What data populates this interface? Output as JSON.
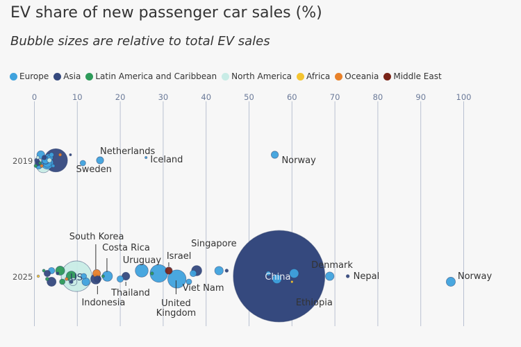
{
  "title": "EV share of new passenger car sales (%)",
  "subtitle": "Bubble sizes are relative to total EV sales",
  "colors": {
    "Europe": "#3fa2dd",
    "Asia": "#35497e",
    "Latin America and Caribbean": "#2e9b5a",
    "North America": "#c8ece6",
    "Africa": "#f4c430",
    "Oceania": "#e8812a",
    "Middle East": "#7a2418",
    "grid": "#b9c1d1",
    "label": "#333333"
  },
  "chart_data": {
    "type": "scatter",
    "x_ticks": [
      "0",
      "10",
      "20",
      "30",
      "40",
      "50",
      "60",
      "70",
      "80",
      "90",
      "100"
    ],
    "xlim": [
      0,
      100
    ],
    "categories": [
      "2019",
      "2025"
    ],
    "legend": [
      "Europe",
      "Asia",
      "Latin America and Caribbean",
      "North America",
      "Africa",
      "Oceania",
      "Middle East"
    ],
    "legend_position": "top-left",
    "grid": true,
    "labels": {
      "netherlands": "Netherlands",
      "sweden": "Sweden",
      "iceland": "Iceland",
      "norway_2019": "Norway",
      "south_korea": "South Korea",
      "costa_rica": "Costa Rica",
      "israel": "Israel",
      "singapore": "Singapore",
      "uruguay": "Uruguay",
      "us": "US",
      "indonesia": "Indonesia",
      "thailand": "Thailand",
      "uk_line1": "United",
      "uk_line2": "Kingdom",
      "viet_nam": "Viet Nam",
      "china": "China",
      "denmark": "Denmark",
      "nepal": "Nepal",
      "norway_2025": "Norway",
      "ethiopia": "Ethiopia"
    },
    "series": [
      {
        "year": "2019",
        "region": "Asia",
        "x": 5.0,
        "size": 2.6
      },
      {
        "year": "2019",
        "region": "North America",
        "x": 2.1,
        "size": 0.9
      },
      {
        "year": "2019",
        "region": "Europe",
        "x": 3.0,
        "size": 0.7
      },
      {
        "year": "2019",
        "region": "Europe",
        "x": 2.6,
        "size": 0.3
      },
      {
        "year": "2019",
        "region": "Europe",
        "x": 3.3,
        "size": 0.25
      },
      {
        "year": "2019",
        "region": "Europe",
        "x": 1.5,
        "size": 0.3
      },
      {
        "year": "2019",
        "region": "Europe",
        "x": 1.0,
        "size": 0.2
      },
      {
        "year": "2019",
        "region": "Europe",
        "x": 3.0,
        "size": 0.35
      },
      {
        "year": "2019",
        "region": "Europe",
        "x": 2.6,
        "size": 0.25
      },
      {
        "year": "2019",
        "region": "Europe",
        "x": 3.7,
        "size": 0.15
      },
      {
        "year": "2019",
        "region": "Europe",
        "x": 4.0,
        "size": 0.1
      },
      {
        "year": "2019",
        "region": "Europe",
        "x": 4.4,
        "size": 0.05
      },
      {
        "year": "2019",
        "region": "Asia",
        "x": 0.8,
        "size": 0.15
      },
      {
        "year": "2019",
        "region": "Asia",
        "x": 0.6,
        "size": 0.1
      },
      {
        "year": "2019",
        "region": "Asia",
        "x": 2.3,
        "size": 0.1
      },
      {
        "year": "2019",
        "region": "Asia",
        "x": 8.4,
        "size": 0.02
      },
      {
        "year": "2019",
        "region": "Latin America and Caribbean",
        "x": 0.3,
        "size": 0.05
      },
      {
        "year": "2019",
        "region": "Latin America and Caribbean",
        "x": 1.3,
        "size": 0.04
      },
      {
        "year": "2019",
        "region": "North America",
        "x": 3.5,
        "size": 0.1
      },
      {
        "year": "2019",
        "region": "North America",
        "x": 0.8,
        "size": 0.05
      },
      {
        "year": "2019",
        "region": "Oceania",
        "x": 6.0,
        "size": 0.05
      },
      {
        "year": "2019",
        "region": "Oceania",
        "x": 1.7,
        "size": 0.05
      },
      {
        "year": "2019",
        "region": "Europe",
        "x": 11.3,
        "size": 0.15
      },
      {
        "year": "2019",
        "region": "Europe",
        "x": 15.3,
        "size": 0.25
      },
      {
        "year": "2019",
        "region": "Europe",
        "x": 26.0,
        "size": 0.01
      },
      {
        "year": "2019",
        "region": "Europe",
        "x": 56.0,
        "size": 0.25
      },
      {
        "year": "2025",
        "region": "Asia",
        "x": 57.0,
        "size": 40.0
      },
      {
        "year": "2025",
        "region": "North America",
        "x": 9.8,
        "size": 4.5
      },
      {
        "year": "2025",
        "region": "Europe",
        "x": 29.0,
        "size": 1.5
      },
      {
        "year": "2025",
        "region": "Europe",
        "x": 33.2,
        "size": 1.6
      },
      {
        "year": "2025",
        "region": "Europe",
        "x": 25.0,
        "size": 0.8
      },
      {
        "year": "2025",
        "region": "Europe",
        "x": 17.0,
        "size": 0.5
      },
      {
        "year": "2025",
        "region": "Europe",
        "x": 12.0,
        "size": 0.3
      },
      {
        "year": "2025",
        "region": "Europe",
        "x": 60.5,
        "size": 0.4
      },
      {
        "year": "2025",
        "region": "Europe",
        "x": 56.5,
        "size": 0.4
      },
      {
        "year": "2025",
        "region": "Europe",
        "x": 43.0,
        "size": 0.35
      },
      {
        "year": "2025",
        "region": "Europe",
        "x": 68.8,
        "size": 0.35
      },
      {
        "year": "2025",
        "region": "Europe",
        "x": 97.0,
        "size": 0.4
      },
      {
        "year": "2025",
        "region": "Europe",
        "x": 37.0,
        "size": 0.2
      },
      {
        "year": "2025",
        "region": "Europe",
        "x": 20.0,
        "size": 0.2
      },
      {
        "year": "2025",
        "region": "Europe",
        "x": 4.0,
        "size": 0.2
      },
      {
        "year": "2025",
        "region": "Europe",
        "x": 11.5,
        "size": 0.15
      },
      {
        "year": "2025",
        "region": "Europe",
        "x": 36.0,
        "size": 0.15
      },
      {
        "year": "2025",
        "region": "Europe",
        "x": 54.5,
        "size": 0.1
      },
      {
        "year": "2025",
        "region": "Asia",
        "x": 14.3,
        "size": 0.5
      },
      {
        "year": "2025",
        "region": "Asia",
        "x": 37.8,
        "size": 0.5
      },
      {
        "year": "2025",
        "region": "Asia",
        "x": 21.3,
        "size": 0.3
      },
      {
        "year": "2025",
        "region": "Asia",
        "x": 4.0,
        "size": 0.4
      },
      {
        "year": "2025",
        "region": "Asia",
        "x": 3.0,
        "size": 0.2
      },
      {
        "year": "2025",
        "region": "Asia",
        "x": 14.7,
        "size": 0.2
      },
      {
        "year": "2025",
        "region": "Asia",
        "x": 44.8,
        "size": 0.05
      },
      {
        "year": "2025",
        "region": "Asia",
        "x": 73.0,
        "size": 0.05
      },
      {
        "year": "2025",
        "region": "Asia",
        "x": 8.6,
        "size": 0.06
      },
      {
        "year": "2025",
        "region": "Asia",
        "x": 5.4,
        "size": 0.04
      },
      {
        "year": "2025",
        "region": "Asia",
        "x": 15.2,
        "size": 0.05
      },
      {
        "year": "2025",
        "region": "Latin America and Caribbean",
        "x": 6.0,
        "size": 0.4
      },
      {
        "year": "2025",
        "region": "Latin America and Caribbean",
        "x": 8.6,
        "size": 0.5
      },
      {
        "year": "2025",
        "region": "Latin America and Caribbean",
        "x": 6.5,
        "size": 0.15
      },
      {
        "year": "2025",
        "region": "Latin America and Caribbean",
        "x": 27.4,
        "size": 0.05
      },
      {
        "year": "2025",
        "region": "Latin America and Caribbean",
        "x": 3.0,
        "size": 0.06
      },
      {
        "year": "2025",
        "region": "Latin America and Caribbean",
        "x": 2.2,
        "size": 0.04
      },
      {
        "year": "2025",
        "region": "Latin America and Caribbean",
        "x": 16.0,
        "size": 0.04
      },
      {
        "year": "2025",
        "region": "North America",
        "x": 9.0,
        "size": 0.3
      },
      {
        "year": "2025",
        "region": "Oceania",
        "x": 14.5,
        "size": 0.3
      },
      {
        "year": "2025",
        "region": "Oceania",
        "x": 7.5,
        "size": 0.05
      },
      {
        "year": "2025",
        "region": "Middle East",
        "x": 31.3,
        "size": 0.25
      },
      {
        "year": "2025",
        "region": "Africa",
        "x": 0.9,
        "size": 0.03
      },
      {
        "year": "2025",
        "region": "Africa",
        "x": 60.0,
        "size": 0.03
      }
    ]
  }
}
